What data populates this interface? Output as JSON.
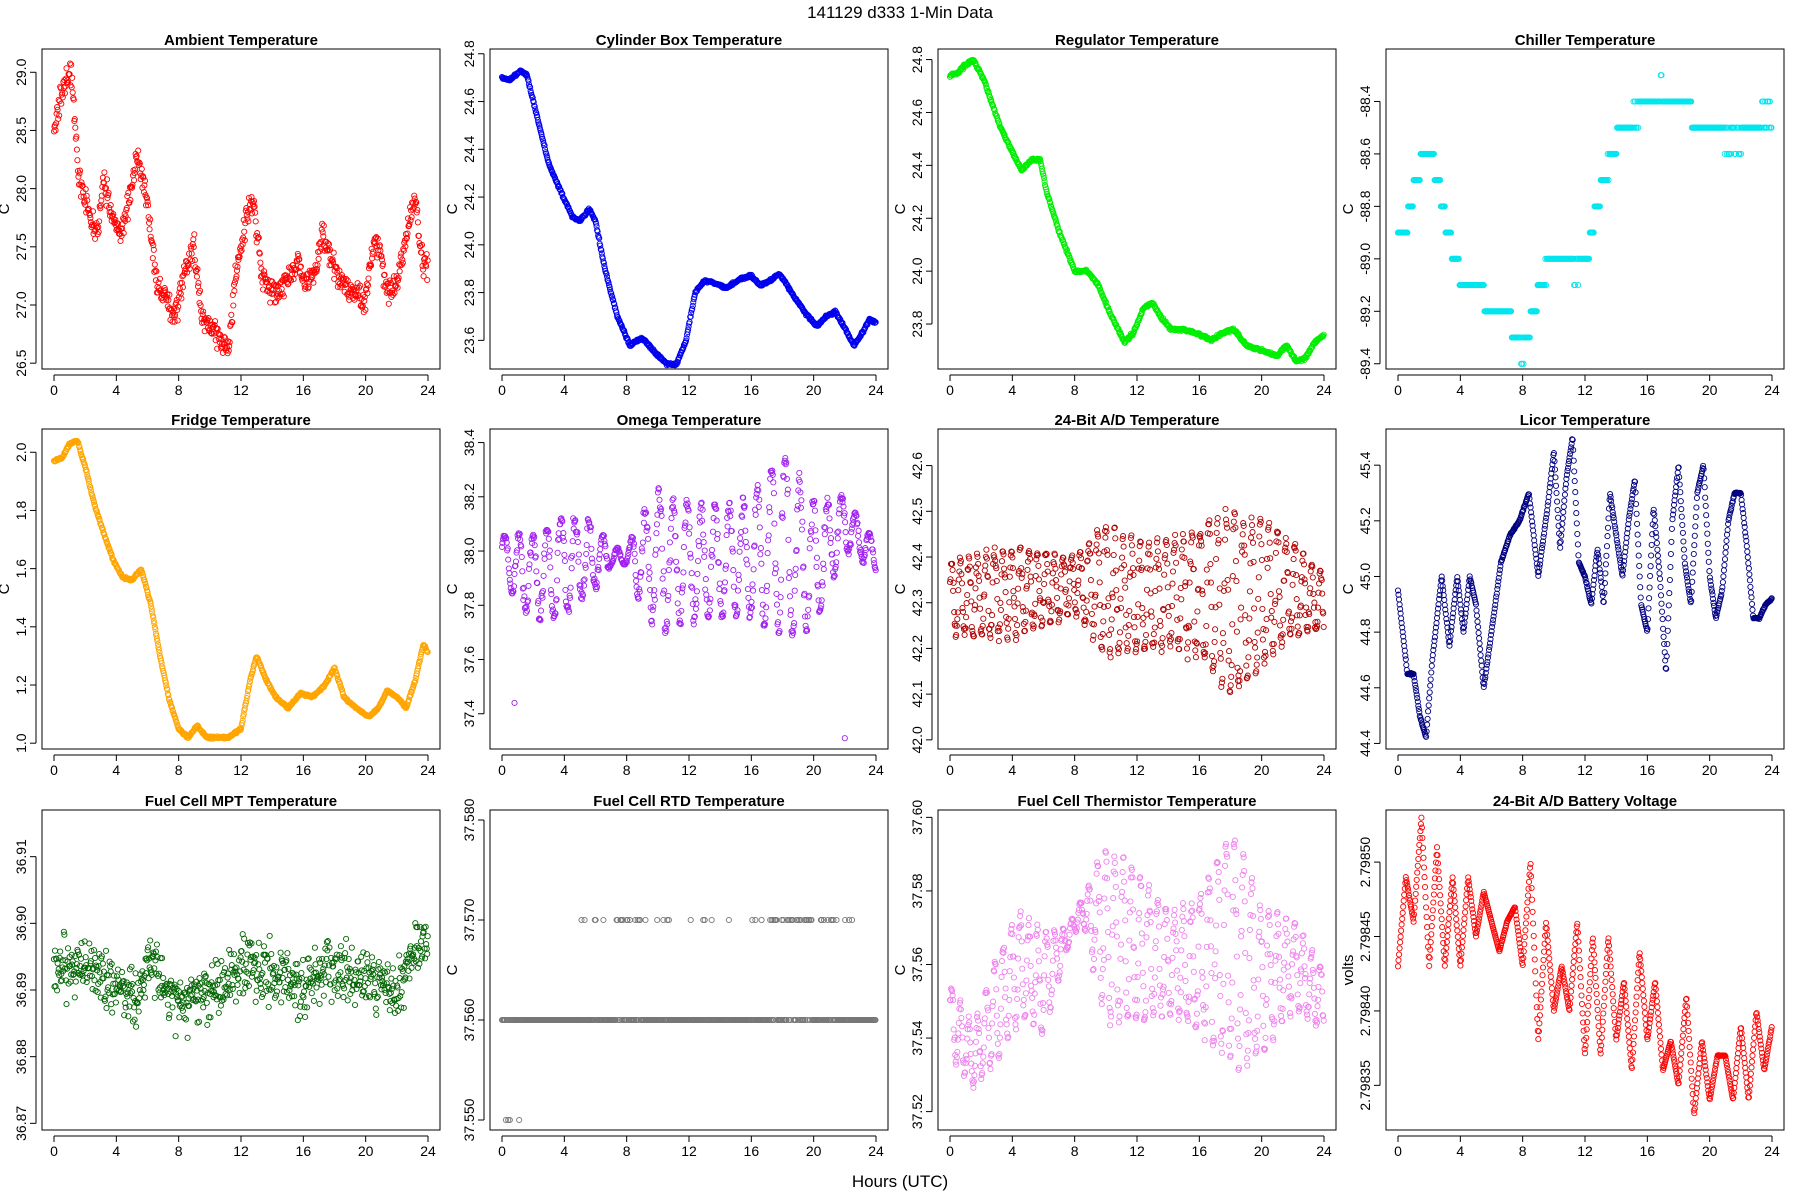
{
  "figure": {
    "title": "141129   d333   1-Min Data",
    "xlabel": "Hours (UTC)"
  },
  "chart_data": [
    {
      "type": "scatter",
      "title": "Ambient Temperature",
      "ylabel": "C",
      "color": "#ff0000",
      "xlim": [
        0,
        24
      ],
      "ylim": [
        26.45,
        29.2
      ],
      "xticks": [
        0,
        4,
        8,
        12,
        16,
        20,
        24
      ],
      "yticks": [
        26.5,
        27.0,
        27.5,
        28.0,
        28.5,
        29.0
      ],
      "ytick_labels": [
        "26.5",
        "27.0",
        "27.5",
        "28.0",
        "28.5",
        "29.0"
      ],
      "shape": "noisy",
      "noise": 0.16,
      "x": [
        0,
        0.5,
        1.1,
        1.6,
        2.2,
        2.8,
        3.2,
        3.8,
        4.3,
        5.0,
        5.4,
        5.8,
        6.2,
        6.6,
        7.2,
        7.6,
        8.0,
        8.5,
        9.0,
        9.5,
        10.0,
        10.6,
        11.2,
        11.6,
        12.0,
        12.4,
        12.8,
        13.4,
        14.2,
        15.0,
        15.6,
        16.2,
        16.8,
        17.2,
        17.8,
        18.4,
        19.2,
        20.0,
        20.6,
        21.0,
        21.4,
        22.0,
        22.6,
        23.2,
        23.7,
        24.0
      ],
      "y": [
        28.5,
        28.8,
        29.0,
        28.1,
        27.8,
        27.6,
        28.1,
        27.7,
        27.6,
        28.0,
        28.3,
        28.0,
        27.6,
        27.2,
        27.1,
        26.9,
        27.0,
        27.3,
        27.5,
        26.9,
        26.8,
        26.7,
        26.6,
        27.2,
        27.5,
        27.8,
        27.9,
        27.2,
        27.1,
        27.2,
        27.4,
        27.2,
        27.3,
        27.6,
        27.4,
        27.2,
        27.1,
        27.05,
        27.6,
        27.4,
        27.1,
        27.2,
        27.6,
        27.9,
        27.3,
        27.3
      ]
    },
    {
      "type": "scatter",
      "title": "Cylinder Box Temperature",
      "ylabel": "C",
      "color": "#0000ee",
      "xlim": [
        0,
        24
      ],
      "ylim": [
        23.48,
        24.82
      ],
      "xticks": [
        0,
        4,
        8,
        12,
        16,
        20,
        24
      ],
      "yticks": [
        23.6,
        23.8,
        24.0,
        24.2,
        24.4,
        24.6,
        24.8
      ],
      "ytick_labels": [
        "23.6",
        "23.8",
        "24.0",
        "24.2",
        "24.4",
        "24.6",
        "24.8"
      ],
      "shape": "smooth",
      "noise": 0.008,
      "x": [
        0,
        0.5,
        1.2,
        1.6,
        2.2,
        3.0,
        3.8,
        4.5,
        5.0,
        5.6,
        6.0,
        6.6,
        7.4,
        8.2,
        9.0,
        9.8,
        10.6,
        11.2,
        11.8,
        12.4,
        13.0,
        13.6,
        14.4,
        15.4,
        16.0,
        16.6,
        17.2,
        17.8,
        18.6,
        19.4,
        20.2,
        20.8,
        21.4,
        22.0,
        22.6,
        23.2,
        23.6,
        24.0
      ],
      "y": [
        24.7,
        24.69,
        24.73,
        24.71,
        24.55,
        24.34,
        24.22,
        24.12,
        24.1,
        24.15,
        24.1,
        23.9,
        23.7,
        23.58,
        23.61,
        23.55,
        23.5,
        23.5,
        23.6,
        23.8,
        23.85,
        23.84,
        23.82,
        23.86,
        23.87,
        23.83,
        23.85,
        23.88,
        23.8,
        23.72,
        23.66,
        23.7,
        23.72,
        23.65,
        23.58,
        23.64,
        23.69,
        23.67
      ]
    },
    {
      "type": "scatter",
      "title": "Regulator Temperature",
      "ylabel": "C",
      "color": "#00ee00",
      "xlim": [
        0,
        24
      ],
      "ylim": [
        23.63,
        24.84
      ],
      "xticks": [
        0,
        4,
        8,
        12,
        16,
        20,
        24
      ],
      "yticks": [
        23.8,
        24.0,
        24.2,
        24.4,
        24.6,
        24.8
      ],
      "ytick_labels": [
        "23.8",
        "24.0",
        "24.2",
        "24.4",
        "24.6",
        "24.8"
      ],
      "shape": "smooth",
      "noise": 0.008,
      "x": [
        0,
        0.5,
        1.0,
        1.5,
        2.2,
        3.2,
        4.0,
        4.6,
        5.2,
        5.8,
        6.2,
        7.0,
        8.0,
        8.8,
        9.5,
        10.2,
        11.2,
        11.8,
        12.4,
        13.0,
        13.6,
        14.2,
        15.0,
        16.0,
        16.8,
        17.6,
        18.2,
        19.0,
        20.0,
        21.0,
        21.6,
        22.2,
        22.8,
        23.4,
        24.0
      ],
      "y": [
        24.74,
        24.75,
        24.78,
        24.8,
        24.72,
        24.55,
        24.45,
        24.38,
        24.42,
        24.42,
        24.3,
        24.15,
        24.0,
        24.0,
        23.95,
        23.85,
        23.73,
        23.77,
        23.86,
        23.88,
        23.82,
        23.78,
        23.78,
        23.76,
        23.74,
        23.77,
        23.78,
        23.72,
        23.7,
        23.68,
        23.72,
        23.66,
        23.67,
        23.73,
        23.76
      ]
    },
    {
      "type": "scatter",
      "title": "Chiller Temperature",
      "ylabel": "C",
      "color": "#00e5ee",
      "xlim": [
        0,
        24
      ],
      "ylim": [
        -89.42,
        -88.2
      ],
      "xticks": [
        0,
        4,
        8,
        12,
        16,
        20,
        24
      ],
      "yticks": [
        -88.4,
        -88.6,
        -88.8,
        -89.0,
        -89.2,
        -89.4
      ],
      "ytick_labels": [
        "-88.4",
        "-88.6",
        "-88.8",
        "-89.0",
        "-89.2",
        "-89.4"
      ],
      "shape": "step",
      "step": 0.1,
      "noise": 0.03,
      "x": [
        0,
        0.6,
        1.2,
        1.8,
        2.4,
        3.0,
        3.6,
        4.2,
        5.0,
        6.0,
        7.0,
        7.5,
        8.0,
        8.6,
        9.2,
        9.8,
        10.6,
        11.4,
        12.0,
        12.6,
        13.2,
        13.8,
        14.4,
        15.2,
        16.0,
        17.0,
        18.0,
        18.8,
        19.6,
        20.4,
        21.2,
        22.0,
        22.8,
        23.4,
        24.0
      ],
      "y": [
        -88.9,
        -88.85,
        -88.7,
        -88.55,
        -88.65,
        -88.85,
        -89.0,
        -89.1,
        -89.1,
        -89.2,
        -89.2,
        -89.3,
        -89.35,
        -89.2,
        -89.1,
        -89.0,
        -89.0,
        -89.05,
        -89.0,
        -88.85,
        -88.7,
        -88.6,
        -88.5,
        -88.45,
        -88.4,
        -88.35,
        -88.4,
        -88.45,
        -88.5,
        -88.5,
        -88.55,
        -88.55,
        -88.5,
        -88.45,
        -88.45
      ]
    },
    {
      "type": "scatter",
      "title": "Fridge Temperature",
      "ylabel": "C",
      "color": "#ffa500",
      "xlim": [
        0,
        24
      ],
      "ylim": [
        0.98,
        2.08
      ],
      "xticks": [
        0,
        4,
        8,
        12,
        16,
        20,
        24
      ],
      "yticks": [
        1.0,
        1.2,
        1.4,
        1.6,
        1.8,
        2.0
      ],
      "ytick_labels": [
        "1.0",
        "1.2",
        "1.4",
        "1.6",
        "1.8",
        "2.0"
      ],
      "shape": "smooth",
      "noise": 0.006,
      "x": [
        0,
        0.5,
        1.0,
        1.5,
        2.0,
        2.6,
        3.2,
        3.8,
        4.4,
        5.0,
        5.6,
        6.2,
        6.8,
        7.4,
        8.0,
        8.6,
        9.2,
        9.8,
        10.4,
        11.2,
        12.0,
        12.6,
        13.0,
        13.6,
        14.2,
        15.0,
        15.8,
        16.6,
        17.4,
        18.0,
        18.6,
        19.4,
        20.2,
        20.8,
        21.4,
        22.0,
        22.6,
        23.2,
        23.7,
        24.0
      ],
      "y": [
        1.97,
        1.98,
        2.03,
        2.04,
        1.95,
        1.82,
        1.72,
        1.63,
        1.57,
        1.56,
        1.6,
        1.48,
        1.3,
        1.15,
        1.05,
        1.02,
        1.06,
        1.02,
        1.02,
        1.02,
        1.05,
        1.22,
        1.3,
        1.22,
        1.16,
        1.12,
        1.17,
        1.16,
        1.2,
        1.26,
        1.16,
        1.12,
        1.09,
        1.12,
        1.18,
        1.16,
        1.12,
        1.22,
        1.34,
        1.31
      ]
    },
    {
      "type": "scatter",
      "title": "Omega Temperature",
      "ylabel": "C",
      "color": "#a020f0",
      "xlim": [
        0,
        24
      ],
      "ylim": [
        37.27,
        38.45
      ],
      "xticks": [
        0,
        4,
        8,
        12,
        16,
        20,
        24
      ],
      "yticks": [
        37.4,
        37.6,
        37.8,
        38.0,
        38.2,
        38.4
      ],
      "ytick_labels": [
        "37.4",
        "37.6",
        "37.8",
        "38.0",
        "38.2",
        "38.4"
      ],
      "shape": "osc",
      "period": 0.9,
      "x": [
        0,
        2,
        4,
        6,
        7,
        8,
        9,
        10,
        12,
        14,
        16,
        18,
        19,
        20,
        22,
        24
      ],
      "y": [
        37.98,
        37.9,
        37.95,
        37.98,
        37.98,
        37.98,
        37.96,
        37.96,
        37.96,
        37.96,
        37.98,
        38.02,
        37.98,
        37.96,
        38.1,
        37.98
      ],
      "amp": [
        0.08,
        0.16,
        0.18,
        0.12,
        0.03,
        0.03,
        0.18,
        0.26,
        0.22,
        0.2,
        0.22,
        0.34,
        0.3,
        0.24,
        0.1,
        0.05
      ],
      "extra": [
        [
          0.8,
          37.44
        ],
        [
          22.0,
          37.31
        ]
      ]
    },
    {
      "type": "scatter",
      "title": "24-Bit A/D Temperature",
      "ylabel": "C",
      "color": "#b00000",
      "xlim": [
        0,
        24
      ],
      "ylim": [
        41.98,
        42.68
      ],
      "xticks": [
        0,
        4,
        8,
        12,
        16,
        20,
        24
      ],
      "yticks": [
        42.0,
        42.1,
        42.2,
        42.3,
        42.4,
        42.5,
        42.6
      ],
      "ytick_labels": [
        "42.0",
        "42.1",
        "42.2",
        "42.3",
        "42.4",
        "42.5",
        "42.6"
      ],
      "shape": "osc",
      "period": 0.55,
      "x": [
        0,
        4,
        6,
        8,
        10,
        12,
        14,
        16,
        18,
        20,
        22,
        24
      ],
      "y": [
        42.31,
        42.32,
        42.33,
        42.34,
        42.33,
        42.31,
        42.32,
        42.32,
        42.3,
        42.32,
        42.33,
        42.3
      ],
      "amp": [
        0.08,
        0.1,
        0.08,
        0.06,
        0.14,
        0.12,
        0.12,
        0.14,
        0.2,
        0.16,
        0.1,
        0.06
      ]
    },
    {
      "type": "scatter",
      "title": "Licor Temperature",
      "ylabel": "C",
      "color": "#000080",
      "xlim": [
        0,
        24
      ],
      "ylim": [
        44.38,
        45.53
      ],
      "xticks": [
        0,
        4,
        8,
        12,
        16,
        20,
        24
      ],
      "yticks": [
        44.4,
        44.6,
        44.8,
        45.0,
        45.2,
        45.4
      ],
      "ytick_labels": [
        "44.4",
        "44.6",
        "44.8",
        "45.0",
        "45.2",
        "45.4"
      ],
      "shape": "smooth",
      "noise": 0.004,
      "x": [
        0,
        0.6,
        1.0,
        1.4,
        1.8,
        2.2,
        2.8,
        3.3,
        3.8,
        4.2,
        4.6,
        5.0,
        5.5,
        6.0,
        6.6,
        7.2,
        7.8,
        8.4,
        9.0,
        9.6,
        10.0,
        10.4,
        10.8,
        11.2,
        11.6,
        12.0,
        12.4,
        12.8,
        13.2,
        13.6,
        14.0,
        14.4,
        14.8,
        15.2,
        15.6,
        16.0,
        16.4,
        16.8,
        17.2,
        17.6,
        18.0,
        18.4,
        18.8,
        19.2,
        19.6,
        20.0,
        20.4,
        20.8,
        21.2,
        21.6,
        22.0,
        22.4,
        22.8,
        23.2,
        23.6,
        24.0
      ],
      "y": [
        44.95,
        44.65,
        44.65,
        44.5,
        44.42,
        44.7,
        45.0,
        44.75,
        45.0,
        44.8,
        45.0,
        44.9,
        44.6,
        44.8,
        45.05,
        45.15,
        45.2,
        45.3,
        45.0,
        45.25,
        45.45,
        45.1,
        45.35,
        45.5,
        45.05,
        45.0,
        44.9,
        45.1,
        44.9,
        45.3,
        45.15,
        45.0,
        45.2,
        45.35,
        44.9,
        44.8,
        45.25,
        45.0,
        44.65,
        45.2,
        45.4,
        45.05,
        44.9,
        45.3,
        45.4,
        45.0,
        44.85,
        44.95,
        45.2,
        45.3,
        45.3,
        45.1,
        44.85,
        44.85,
        44.9,
        44.92
      ]
    },
    {
      "type": "scatter",
      "title": "Fuel Cell MPT Temperature",
      "ylabel": "",
      "color": "#006400",
      "xlim": [
        0,
        24
      ],
      "ylim": [
        36.869,
        36.917
      ],
      "xticks": [
        0,
        4,
        8,
        12,
        16,
        20,
        24
      ],
      "yticks": [
        36.87,
        36.88,
        36.89,
        36.9,
        36.91
      ],
      "ytick_labels": [
        "36.87",
        "36.88",
        "36.89",
        "36.90",
        "36.91"
      ],
      "shape": "noisy",
      "noise": 0.0065,
      "x": [
        0,
        2,
        4,
        5.5,
        6,
        8,
        10,
        12,
        14,
        16,
        18,
        20,
        22,
        24
      ],
      "y": [
        36.893,
        36.894,
        36.89,
        36.889,
        36.894,
        36.888,
        36.889,
        36.894,
        36.892,
        36.891,
        36.893,
        36.892,
        36.89,
        36.898
      ]
    },
    {
      "type": "scatter",
      "title": "Fuel Cell RTD Temperature",
      "ylabel": "C",
      "color": "#777777",
      "xlim": [
        0,
        24
      ],
      "ylim": [
        37.549,
        37.581
      ],
      "xticks": [
        0,
        4,
        8,
        12,
        16,
        20,
        24
      ],
      "yticks": [
        37.55,
        37.56,
        37.57,
        37.58
      ],
      "ytick_labels": [
        "37.550",
        "37.560",
        "37.570",
        "37.580"
      ],
      "shape": "levels",
      "levels": [
        37.55,
        37.56,
        37.57,
        37.58
      ],
      "x": [
        0,
        2,
        4,
        6,
        8,
        10,
        12,
        14,
        16,
        18,
        20,
        22,
        24
      ],
      "y": [
        37.556,
        37.559,
        37.562,
        37.562,
        37.564,
        37.563,
        37.562,
        37.562,
        37.563,
        37.565,
        37.565,
        37.563,
        37.558
      ]
    },
    {
      "type": "scatter",
      "title": "Fuel Cell Thermistor Temperature",
      "ylabel": "C",
      "color": "#ee82ee",
      "xlim": [
        0,
        24
      ],
      "ylim": [
        37.515,
        37.602
      ],
      "xticks": [
        0,
        4,
        8,
        12,
        16,
        20,
        24
      ],
      "yticks": [
        37.52,
        37.54,
        37.56,
        37.58,
        37.6
      ],
      "ytick_labels": [
        "37.52",
        "37.54",
        "37.56",
        "37.58",
        "37.60"
      ],
      "shape": "osc",
      "period": 0.55,
      "x": [
        0,
        1.5,
        3,
        4.5,
        6,
        7.5,
        8.5,
        10,
        12,
        14,
        16,
        18,
        19,
        20,
        22,
        24
      ],
      "y": [
        37.545,
        37.535,
        37.548,
        37.56,
        37.555,
        37.567,
        37.575,
        37.568,
        37.565,
        37.56,
        37.56,
        37.565,
        37.56,
        37.555,
        37.56,
        37.55
      ],
      "amp": [
        0.01,
        0.008,
        0.014,
        0.014,
        0.014,
        0.003,
        0.003,
        0.024,
        0.02,
        0.014,
        0.018,
        0.03,
        0.028,
        0.02,
        0.012,
        0.008
      ]
    },
    {
      "type": "scatter",
      "title": "24-Bit A/D Battery Voltage",
      "ylabel": "volts",
      "color": "#ff0000",
      "xlim": [
        0,
        24
      ],
      "ylim": [
        2.79832,
        2.798535
      ],
      "xticks": [
        0,
        4,
        8,
        12,
        16,
        20,
        24
      ],
      "yticks": [
        2.79835,
        2.7984,
        2.79845,
        2.7985
      ],
      "ytick_labels": [
        "2.79835",
        "2.79840",
        "2.79845",
        "2.79850"
      ],
      "shape": "smooth",
      "noise": 4e-07,
      "x": [
        0,
        0.5,
        1.0,
        1.5,
        2.0,
        2.5,
        3.0,
        3.5,
        4.0,
        4.5,
        5.0,
        5.5,
        6.0,
        6.5,
        7.0,
        7.5,
        8.0,
        8.5,
        9.0,
        9.5,
        10.0,
        10.5,
        11.0,
        11.5,
        12.0,
        12.5,
        13.0,
        13.5,
        14.0,
        14.5,
        15.0,
        15.5,
        16.0,
        16.5,
        17.0,
        17.5,
        18.0,
        18.5,
        19.0,
        19.5,
        20.0,
        20.5,
        21.0,
        21.5,
        22.0,
        22.5,
        23.0,
        23.5,
        24.0
      ],
      "y": [
        2.79843,
        2.79849,
        2.79846,
        2.79853,
        2.79843,
        2.79851,
        2.79843,
        2.79849,
        2.79843,
        2.79849,
        2.79845,
        2.79848,
        2.79846,
        2.79844,
        2.79846,
        2.79847,
        2.79843,
        2.7985,
        2.79838,
        2.79846,
        2.7984,
        2.79843,
        2.7984,
        2.79846,
        2.79837,
        2.79845,
        2.79837,
        2.79845,
        2.79838,
        2.79842,
        2.79836,
        2.79844,
        2.79838,
        2.79842,
        2.79836,
        2.79838,
        2.79835,
        2.79841,
        2.79833,
        2.79838,
        2.79834,
        2.79837,
        2.79837,
        2.79834,
        2.79839,
        2.79834,
        2.7984,
        2.79836,
        2.79839
      ]
    }
  ]
}
